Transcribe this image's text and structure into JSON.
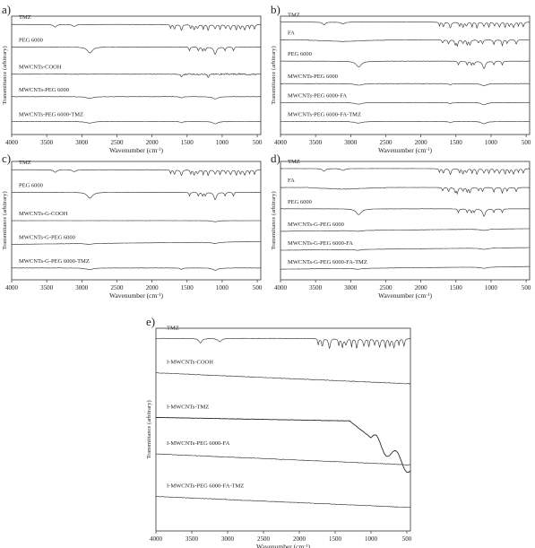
{
  "figure": {
    "axis_title_x": "Wavenumber (cm",
    "axis_title_x_sup": "-1",
    "axis_title_x_end": ")",
    "axis_title_y": "Transmittance (arbitrary)"
  },
  "chart_data": [
    {
      "panel": "a)",
      "type": "line",
      "xlabel": "Wavenumber (cm-1)",
      "ylabel": "Transmittance (arbitrary)",
      "xlim": [
        4000,
        450
      ],
      "x_ticks": [
        4000,
        3500,
        3000,
        2500,
        2000,
        1500,
        1000,
        500
      ],
      "series": [
        {
          "name": "TMZ",
          "style": "tmz",
          "level": 0.93
        },
        {
          "name": "PEG 6000",
          "style": "peg",
          "level": 0.74
        },
        {
          "name": "MWCNTs-COOH",
          "style": "noisy",
          "level": 0.51
        },
        {
          "name": "MWCNTs-PEG 6000",
          "style": "weak",
          "level": 0.32
        },
        {
          "name": "MWCNTs-PEG 6000-TMZ",
          "style": "weak",
          "level": 0.11
        }
      ]
    },
    {
      "panel": "b)",
      "type": "line",
      "xlabel": "Wavenumber (cm-1)",
      "ylabel": "Transmittance (arbitrary)",
      "xlim": [
        4000,
        450
      ],
      "x_ticks": [
        4000,
        3500,
        3000,
        2500,
        2000,
        1500,
        1000,
        500
      ],
      "series": [
        {
          "name": "TMZ",
          "style": "tmz",
          "level": 0.95
        },
        {
          "name": "FA",
          "style": "fa",
          "level": 0.8
        },
        {
          "name": "PEG 6000",
          "style": "peg",
          "level": 0.62
        },
        {
          "name": "MWCNTs-PEG 6000",
          "style": "weak",
          "level": 0.43
        },
        {
          "name": "MWCNTs-PEG 6000-FA",
          "style": "weak",
          "level": 0.27
        },
        {
          "name": "MWCNTs-PEG 6000-FA-TMZ",
          "style": "weak",
          "level": 0.11
        }
      ]
    },
    {
      "panel": "c)",
      "type": "line",
      "xlabel": "Wavenumber (cm-1)",
      "ylabel": "Transmittance (arbitrary)",
      "xlim": [
        4000,
        450
      ],
      "x_ticks": [
        4000,
        3500,
        3000,
        2500,
        2000,
        1500,
        1000,
        500
      ],
      "series": [
        {
          "name": "TMZ",
          "style": "tmz",
          "level": 0.93
        },
        {
          "name": "PEG 6000",
          "style": "peg",
          "level": 0.74
        },
        {
          "name": "MWCNTs-G-COOH",
          "style": "flat",
          "level": 0.5
        },
        {
          "name": "MWCNTs-G-PEG 6000",
          "style": "rising",
          "level": 0.3
        },
        {
          "name": "MWCNTs-G-PEG 6000-TMZ",
          "style": "weak",
          "level": 0.1
        }
      ]
    },
    {
      "panel": "d)",
      "type": "line",
      "xlabel": "Wavenumber (cm-1)",
      "ylabel": "Transmittance (arbitrary)",
      "xlim": [
        4000,
        450
      ],
      "x_ticks": [
        4000,
        3500,
        3000,
        2500,
        2000,
        1500,
        1000,
        500
      ],
      "series": [
        {
          "name": "TMZ",
          "style": "tmz",
          "level": 0.94
        },
        {
          "name": "FA",
          "style": "fa",
          "level": 0.78
        },
        {
          "name": "PEG 6000",
          "style": "peg",
          "level": 0.6
        },
        {
          "name": "MWCNTs-G-PEG 6000",
          "style": "rising",
          "level": 0.41
        },
        {
          "name": "MWCNTs-G-PEG 6000-FA",
          "style": "rising",
          "level": 0.25
        },
        {
          "name": "MWCNTs-G-PEG 6000-FA-TMZ",
          "style": "rising",
          "level": 0.09
        }
      ]
    },
    {
      "panel": "e)",
      "type": "line",
      "xlabel": "Wavenumber (cm-1)",
      "ylabel": "Transmittance (arbitrary)",
      "xlim": [
        4000,
        450
      ],
      "x_ticks": [
        4000,
        3500,
        3000,
        2500,
        2000,
        1500,
        1000,
        500
      ],
      "series": [
        {
          "name": "TMZ",
          "style": "tmz",
          "level": 0.95
        },
        {
          "name": "I-MWCNTs-COOH",
          "style": "declining",
          "level": 0.78
        },
        {
          "name": "I-MWCNTs-TMZ",
          "style": "imz",
          "level": 0.56
        },
        {
          "name": "I-MWCNTs-PEG 6000-FA",
          "style": "declining",
          "level": 0.38
        },
        {
          "name": "I-MWCNTs-PEG 6000-FA-TMZ",
          "style": "declining",
          "level": 0.17
        }
      ]
    }
  ]
}
